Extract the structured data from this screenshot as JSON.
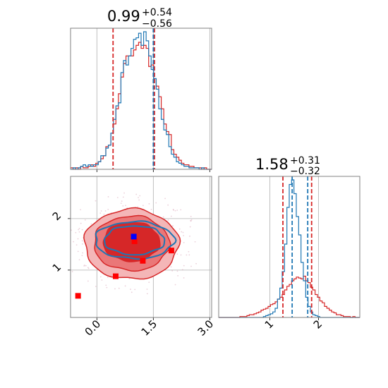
{
  "colors": {
    "red": "#d62728",
    "blue": "#1f77b4",
    "marker_red": "#ff0000",
    "marker_blue": "#0000ff",
    "grid": "#b0b0b0",
    "fill_light": "#f4b6b7",
    "fill_mid": "#ea7778",
    "fill_dark": "#d62728"
  },
  "chart_data": [
    {
      "panel": "top-left",
      "type": "histogram",
      "title": {
        "main": "0.99",
        "sup": "+0.54",
        "sub": "−0.56"
      },
      "xlim": [
        -0.7,
        3.05
      ],
      "grid": true,
      "x_grid": [
        0.0,
        1.5,
        3.0
      ],
      "vlines": [
        {
          "x": 0.43,
          "color": "red"
        },
        {
          "x": 1.53,
          "color": "red"
        },
        {
          "x": 1.5,
          "color": "blue"
        }
      ],
      "series": [
        {
          "color": "red",
          "bins": [
            -0.7,
            3.05
          ],
          "counts": [
            1,
            0,
            1,
            0,
            2,
            1,
            1,
            2,
            3,
            2,
            4,
            5,
            7,
            9,
            15,
            16,
            24,
            30,
            40,
            50,
            61,
            70,
            75,
            75,
            75,
            79,
            82,
            84,
            80,
            82,
            80,
            68,
            69,
            60,
            55,
            48,
            40,
            30,
            25,
            23,
            13,
            10,
            8,
            6,
            4,
            3,
            3,
            2,
            2,
            1,
            1,
            1,
            0,
            1,
            0,
            0
          ]
        },
        {
          "color": "blue",
          "bins": [
            -0.7,
            3.05
          ],
          "counts": [
            0,
            1,
            0,
            1,
            2,
            3,
            2,
            3,
            2,
            3,
            3,
            5,
            9,
            9,
            14,
            16,
            24,
            33,
            42,
            44,
            64,
            72,
            69,
            75,
            80,
            86,
            87,
            90,
            82,
            91,
            85,
            75,
            66,
            60,
            53,
            40,
            33,
            26,
            23,
            15,
            10,
            8,
            5,
            4,
            3,
            2,
            2,
            1,
            1,
            1,
            1,
            0,
            1,
            0,
            0,
            0
          ]
        }
      ]
    },
    {
      "panel": "bottom-left",
      "type": "contour",
      "xlim": [
        -0.7,
        3.05
      ],
      "ylim": [
        0.08,
        2.82
      ],
      "x_ticks": [
        0.0,
        1.5,
        3.0
      ],
      "x_tick_labels": [
        "0.0",
        "1.5",
        "3.0"
      ],
      "y_ticks": [
        1,
        2
      ],
      "y_tick_labels": [
        "1",
        "2"
      ],
      "grid": true,
      "red_contours": [
        {
          "level": "outer",
          "cx": 0.92,
          "cy": 1.5,
          "rx": 1.25,
          "ry": 0.68
        },
        {
          "level": "middle",
          "cx": 0.92,
          "cy": 1.52,
          "rx": 1.0,
          "ry": 0.53
        },
        {
          "level": "inner",
          "cx": 0.92,
          "cy": 1.55,
          "rx": 0.75,
          "ry": 0.38
        }
      ],
      "blue_contours": [
        {
          "level": "outer",
          "cx": 1.0,
          "cy": 1.58,
          "rx": 1.05,
          "ry": 0.36
        },
        {
          "level": "inner",
          "cx": 1.0,
          "cy": 1.58,
          "rx": 0.8,
          "ry": 0.28
        }
      ],
      "markers": [
        {
          "x": -0.5,
          "y": 0.5,
          "color": "marker_red"
        },
        {
          "x": 0.5,
          "y": 0.88,
          "color": "marker_red"
        },
        {
          "x": 1.22,
          "y": 1.18,
          "color": "marker_red"
        },
        {
          "x": 1.98,
          "y": 1.38,
          "color": "marker_red"
        },
        {
          "x": 1.0,
          "y": 1.56,
          "color": "marker_red"
        },
        {
          "x": 0.98,
          "y": 1.65,
          "color": "marker_blue"
        }
      ]
    },
    {
      "panel": "bottom-right",
      "type": "histogram",
      "title": {
        "main": "1.58",
        "sup": "+0.31",
        "sub": "−0.32"
      },
      "xlim": [
        -0.05,
        2.85
      ],
      "x_ticks": [
        1,
        2
      ],
      "x_tick_labels": [
        "1",
        "2"
      ],
      "grid": true,
      "vlines": [
        {
          "x": 1.27,
          "color": "red"
        },
        {
          "x": 1.86,
          "color": "red"
        },
        {
          "x": 1.46,
          "color": "blue"
        },
        {
          "x": 1.78,
          "color": "blue"
        }
      ],
      "series": [
        {
          "color": "red",
          "bins": [
            -0.05,
            2.85
          ],
          "counts": [
            0,
            0,
            0,
            0,
            0,
            0,
            0,
            0,
            0,
            1,
            1,
            1,
            2,
            3,
            3,
            4,
            5,
            6,
            8,
            9,
            10,
            12,
            14,
            15,
            17,
            20,
            22,
            25,
            30,
            34,
            36,
            40,
            42,
            44,
            43,
            42,
            45,
            40,
            38,
            33,
            30,
            25,
            22,
            18,
            16,
            12,
            10,
            8,
            6,
            5,
            3,
            3,
            2,
            1,
            1,
            1,
            0,
            1,
            0,
            0
          ]
        },
        {
          "color": "blue",
          "bins": [
            -0.05,
            2.85
          ],
          "counts": [
            0,
            0,
            0,
            0,
            0,
            0,
            0,
            0,
            0,
            0,
            0,
            0,
            0,
            0,
            0,
            0,
            0,
            0,
            0,
            1,
            2,
            3,
            4,
            6,
            10,
            20,
            32,
            50,
            80,
            120,
            145,
            150,
            135,
            110,
            90,
            60,
            40,
            22,
            12,
            6,
            3,
            2,
            1,
            0,
            0,
            0,
            0,
            0,
            0,
            0,
            0,
            0,
            0,
            0,
            0,
            0,
            0,
            0,
            0,
            0
          ]
        }
      ]
    }
  ]
}
